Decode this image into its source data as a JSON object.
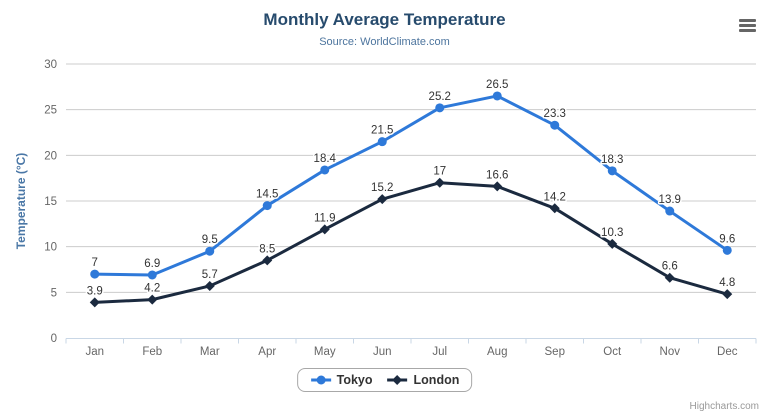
{
  "credit": "Highcharts.com",
  "menu": {
    "icon": "hamburger-icon"
  },
  "colors": {
    "background": "#ffffff",
    "title": "#274b6d",
    "subtitle": "#4d759e",
    "axis_title": "#4a77a6",
    "tick_label": "#666666",
    "grid_line": "#cccccc",
    "axis_line": "#c9d7e6",
    "data_label": "#333333",
    "legend_text": "#333333",
    "legend_border": "#a8a8a8",
    "credit_text": "#999999",
    "menu_icon": "#666666"
  },
  "chart_data": {
    "type": "line",
    "title": "Monthly Average Temperature",
    "subtitle": "Source: WorldClimate.com",
    "xlabel": "",
    "ylabel": "Temperature (°C)",
    "ylim": [
      0,
      30
    ],
    "ytick_interval": 5,
    "grid": true,
    "legend_position": "bottom",
    "categories": [
      "Jan",
      "Feb",
      "Mar",
      "Apr",
      "May",
      "Jun",
      "Jul",
      "Aug",
      "Sep",
      "Oct",
      "Nov",
      "Dec"
    ],
    "series": [
      {
        "name": "Tokyo",
        "color": "#2e79d9",
        "marker": "circle",
        "values": [
          7,
          6.9,
          9.5,
          14.5,
          18.4,
          21.5,
          25.2,
          26.5,
          23.3,
          18.3,
          13.9,
          9.6
        ]
      },
      {
        "name": "London",
        "color": "#1b2a3f",
        "marker": "diamond",
        "values": [
          3.9,
          4.2,
          5.7,
          8.5,
          11.9,
          15.2,
          17,
          16.6,
          14.2,
          10.3,
          6.6,
          4.8
        ]
      }
    ]
  }
}
